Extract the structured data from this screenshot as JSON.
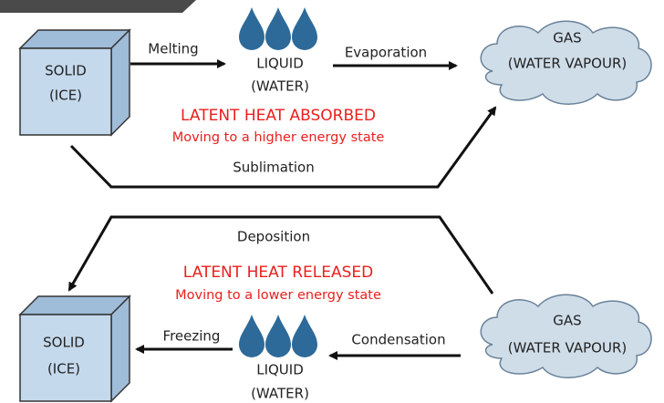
{
  "sections": [
    {
      "solid": [
        "SOLID",
        "(ICE)"
      ],
      "liquid": [
        "LIQUID",
        "(WATER)"
      ],
      "gas": [
        "GAS",
        "(WATER VAPOUR)"
      ],
      "process_1": "Melting",
      "process_2": "Evaporation",
      "process_3": "Sublimation",
      "heading": "LATENT HEAT ABSORBED",
      "subheading": "Moving to a higher energy state"
    },
    {
      "solid": [
        "SOLID",
        "(ICE)"
      ],
      "liquid": [
        "LIQUID",
        "(WATER)"
      ],
      "gas": [
        "GAS",
        "(WATER VAPOUR)"
      ],
      "process_1": "Freezing",
      "process_2": "Condensation",
      "process_3": "Deposition",
      "heading": "LATENT HEAT RELEASED",
      "subheading": "Moving to a lower energy state"
    }
  ]
}
